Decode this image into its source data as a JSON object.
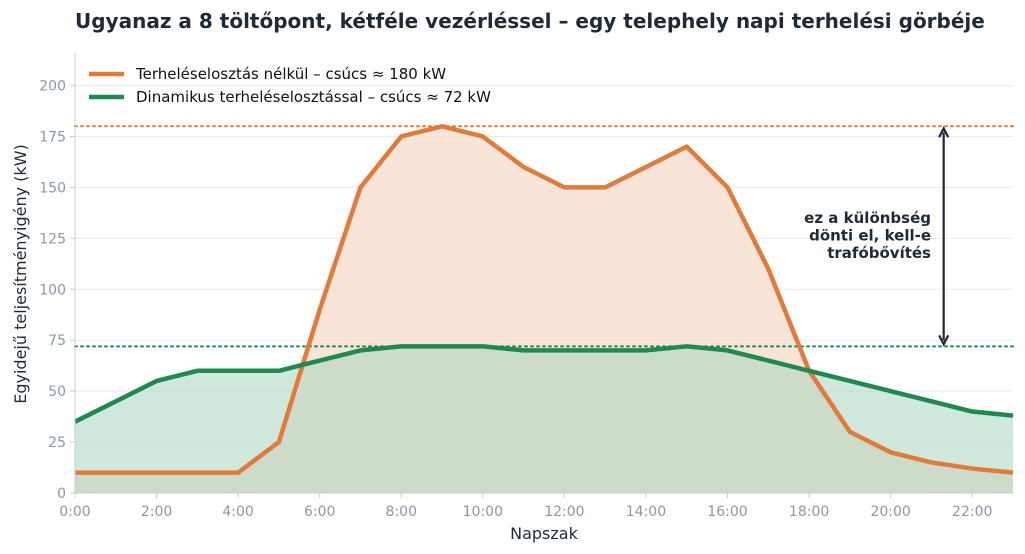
{
  "chart_data": {
    "type": "area",
    "title": "Ugyanaz a 8 töltőpont, kétféle vezérléssel – egy telephely napi terhelési görbéje",
    "xlabel": "Napszak",
    "ylabel": "Egyidejű teljesítményigény (kW)",
    "x": [
      0,
      1,
      2,
      3,
      4,
      5,
      6,
      7,
      8,
      9,
      10,
      11,
      12,
      13,
      14,
      15,
      16,
      17,
      18,
      19,
      20,
      21,
      22,
      23
    ],
    "xlim": [
      0,
      23
    ],
    "ylim": [
      0,
      215
    ],
    "x_ticks": [
      0,
      2,
      4,
      6,
      8,
      10,
      12,
      14,
      16,
      18,
      20,
      22
    ],
    "x_tick_labels": [
      "0:00",
      "2:00",
      "4:00",
      "6:00",
      "8:00",
      "10:00",
      "12:00",
      "14:00",
      "16:00",
      "18:00",
      "20:00",
      "22:00"
    ],
    "y_ticks": [
      0,
      25,
      50,
      75,
      100,
      125,
      150,
      175,
      200
    ],
    "y_tick_labels": [
      "0",
      "25",
      "50",
      "75",
      "100",
      "125",
      "150",
      "175",
      "200"
    ],
    "grid": "horizontal",
    "legend_position": "top-left",
    "series": [
      {
        "name": "Terheléselosztás nélkül – csúcs ≈ 180 kW",
        "color": "#e07b39",
        "fill_color": "#f5dccb",
        "values": [
          10,
          10,
          10,
          10,
          10,
          25,
          90,
          150,
          175,
          180,
          175,
          160,
          150,
          150,
          160,
          170,
          150,
          110,
          60,
          30,
          20,
          15,
          12,
          10
        ]
      },
      {
        "name": "Dinamikus terheléselosztással – csúcs ≈ 72 kW",
        "color": "#1e8a4f",
        "fill_color": "#a9d6c0",
        "values": [
          35,
          45,
          55,
          60,
          60,
          60,
          65,
          70,
          72,
          72,
          72,
          70,
          70,
          70,
          70,
          72,
          70,
          65,
          60,
          55,
          50,
          45,
          40,
          38
        ]
      }
    ],
    "reference_lines": [
      {
        "y": 180,
        "color": "#e07b39",
        "style": "dotted"
      },
      {
        "y": 72,
        "color": "#1e8a4f",
        "style": "dotted"
      }
    ],
    "annotation": {
      "lines": [
        "ez a különbség",
        "dönti el, kell-e",
        "trafóbővítés"
      ],
      "arrow_x": 21.3,
      "arrow_from": 72,
      "arrow_to": 180,
      "color": "#1f2a37"
    }
  }
}
